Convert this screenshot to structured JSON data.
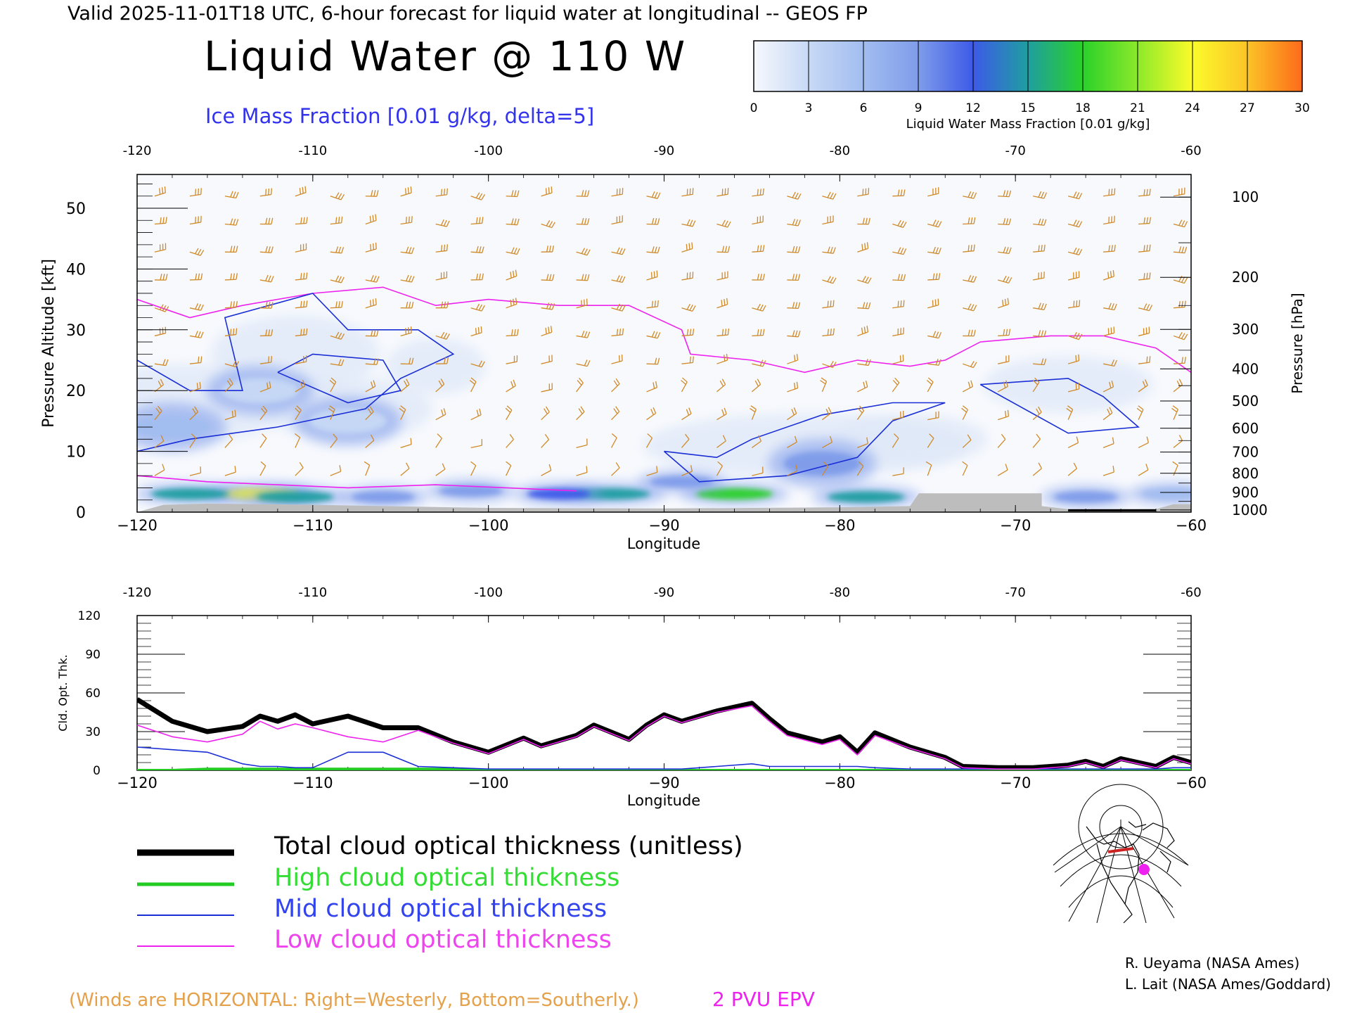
{
  "header": {
    "valid_line": "Valid 2025-11-01T18 UTC, 6-hour forecast for liquid water at longitudinal -- GEOS FP",
    "title": "Liquid Water @ 110 W",
    "subtitle": "Ice Mass Fraction [0.01 g/kg, delta=5]"
  },
  "colorbar": {
    "label": "Liquid Water Mass Fraction [0.01 g/kg]",
    "ticks": [
      "0",
      "3",
      "6",
      "9",
      "12",
      "15",
      "18",
      "21",
      "24",
      "27",
      "30"
    ],
    "colors": [
      "#f6f8fd",
      "#c7d9f5",
      "#a2bdf0",
      "#7f9cea",
      "#3d5ae8",
      "#1f9ea0",
      "#2ad12a",
      "#8ce92a",
      "#fbfb2a",
      "#fcc427",
      "#fd6a1a"
    ]
  },
  "colors": {
    "wind": "#d08a28",
    "epv": "#ee22ee",
    "ice": "#1a2ed6",
    "high": "#22cc22",
    "ground": "#bdbdbd",
    "axis": "#000000"
  },
  "top_panel": {
    "top_ticks": [
      "-120",
      "-110",
      "-100",
      "-90",
      "-80",
      "-70",
      "-60"
    ],
    "bottom_ticks": [
      "−120",
      "−110",
      "−100",
      "−90",
      "−80",
      "−70",
      "−60"
    ],
    "xlabel": "Longitude",
    "ylabel_left": "Pressure Altitude [kft]",
    "left_ticks": [
      "0",
      "10",
      "20",
      "30",
      "40",
      "50"
    ],
    "ylabel_right": "Pressure [hPa]",
    "right_ticks": [
      "100",
      "200",
      "300",
      "400",
      "500",
      "600",
      "700",
      "800",
      "900",
      "1000"
    ]
  },
  "bottom_panel": {
    "top_ticks": [
      "-120",
      "-110",
      "-100",
      "-90",
      "-80",
      "-70",
      "-60"
    ],
    "bottom_ticks": [
      "−120",
      "−110",
      "−100",
      "−90",
      "−80",
      "−70",
      "−60"
    ],
    "xlabel": "Longitude",
    "ylabel": "Cld. Opt. Thk.",
    "y_ticks": [
      "0",
      "30",
      "60",
      "90",
      "120"
    ]
  },
  "legend": {
    "total": "Total cloud optical thickness (unitless)",
    "high": "High cloud optical thickness",
    "mid": "Mid cloud optical thickness",
    "low": "Low cloud optical thickness"
  },
  "footer": {
    "winds_note": "(Winds are HORIZONTAL: Right=Westerly, Bottom=Southerly.)",
    "epv_label": "2 PVU EPV",
    "credit1": "R. Ueyama (NASA Ames)",
    "credit2": "L. Lait (NASA Ames/Goddard)"
  },
  "chart_data": [
    {
      "type": "heatmap",
      "title": "Liquid Water @ 110 W",
      "xlabel": "Longitude",
      "ylabel": "Pressure Altitude [kft]",
      "xlim": [
        -120,
        -60
      ],
      "ylim": [
        0,
        55
      ],
      "pressure_ticks_hpa": [
        100,
        200,
        300,
        400,
        500,
        600,
        700,
        800,
        900,
        1000
      ],
      "liquid_water_scale": [
        0,
        30
      ],
      "liquid_water_blobs": [
        {
          "lon": -113,
          "alt": 3.0,
          "value": 24
        },
        {
          "lon": -111,
          "alt": 2.5,
          "value": 14
        },
        {
          "lon": -117,
          "alt": 3.0,
          "value": 16
        },
        {
          "lon": -106,
          "alt": 2.5,
          "value": 10
        },
        {
          "lon": -101,
          "alt": 3.5,
          "value": 10
        },
        {
          "lon": -93,
          "alt": 3.0,
          "value": 14
        },
        {
          "lon": -96,
          "alt": 3.0,
          "value": 11
        },
        {
          "lon": -86,
          "alt": 3.0,
          "value": 18
        },
        {
          "lon": -89,
          "alt": 5.0,
          "value": 9
        },
        {
          "lon": -81,
          "alt": 8.0,
          "value": 8
        },
        {
          "lon": -78.5,
          "alt": 2.5,
          "value": 14
        },
        {
          "lon": -66,
          "alt": 2.5,
          "value": 8
        },
        {
          "lon": -61,
          "alt": 3.0,
          "value": 7
        },
        {
          "lon": -113,
          "alt": 20.0,
          "value": 3
        },
        {
          "lon": -108,
          "alt": 15.0,
          "value": 3
        },
        {
          "lon": -118,
          "alt": 14.0,
          "value": 5
        }
      ],
      "epv_2pvu_upper": [
        [
          -120,
          35
        ],
        [
          -117,
          32
        ],
        [
          -114,
          34
        ],
        [
          -110,
          36
        ],
        [
          -106,
          37
        ],
        [
          -103,
          34
        ],
        [
          -100,
          35
        ],
        [
          -96,
          34
        ],
        [
          -92,
          34
        ],
        [
          -89,
          30
        ],
        [
          -88.5,
          26
        ],
        [
          -85,
          25
        ],
        [
          -82,
          23
        ],
        [
          -79,
          25
        ],
        [
          -76,
          24
        ],
        [
          -74,
          25
        ],
        [
          -72,
          28
        ],
        [
          -68,
          29
        ],
        [
          -65,
          29
        ],
        [
          -62,
          27
        ],
        [
          -60,
          23
        ]
      ],
      "epv_2pvu_lower": [
        [
          -120,
          6
        ],
        [
          -116,
          5
        ],
        [
          -112,
          4.5
        ],
        [
          -108,
          4
        ],
        [
          -103,
          4.5
        ],
        [
          -99,
          4
        ],
        [
          -95,
          3.5
        ]
      ],
      "ice_contours": [
        [
          [
            -120,
            25
          ],
          [
            -117,
            20
          ],
          [
            -114,
            20
          ],
          [
            -115,
            32
          ],
          [
            -110,
            36
          ],
          [
            -108,
            30
          ],
          [
            -104,
            30
          ],
          [
            -102,
            26
          ],
          [
            -105,
            22
          ],
          [
            -107,
            17
          ],
          [
            -112,
            14
          ],
          [
            -117,
            12
          ],
          [
            -120,
            10
          ]
        ],
        [
          [
            -112,
            23
          ],
          [
            -110,
            26
          ],
          [
            -106,
            25
          ],
          [
            -105,
            20
          ],
          [
            -108,
            18
          ],
          [
            -112,
            23
          ]
        ],
        [
          [
            -90,
            10
          ],
          [
            -87,
            9
          ],
          [
            -85,
            12
          ],
          [
            -81,
            16
          ],
          [
            -77,
            18
          ],
          [
            -74,
            18
          ],
          [
            -77,
            15
          ],
          [
            -79,
            9
          ],
          [
            -83,
            6
          ],
          [
            -88,
            5
          ],
          [
            -90,
            10
          ]
        ],
        [
          [
            -72,
            21
          ],
          [
            -67,
            22
          ],
          [
            -65,
            19
          ],
          [
            -63,
            14
          ],
          [
            -67,
            13
          ],
          [
            -72,
            21
          ]
        ]
      ]
    },
    {
      "type": "line",
      "xlabel": "Longitude",
      "ylabel": "Cld. Opt. Thk.",
      "xlim": [
        -120,
        -60
      ],
      "ylim": [
        0,
        120
      ],
      "x": [
        -120,
        -118,
        -116,
        -114,
        -113,
        -112,
        -111,
        -110,
        -108,
        -106,
        -104,
        -102,
        -100,
        -98,
        -97,
        -95,
        -94,
        -92,
        -91,
        -90,
        -89,
        -87,
        -85,
        -84,
        -83,
        -81,
        -80,
        -79,
        -78,
        -76,
        -74,
        -73,
        -71,
        -69,
        -67,
        -66,
        -65,
        -64,
        -62,
        -61,
        -60
      ],
      "series": [
        {
          "name": "Total cloud optical thickness (unitless)",
          "values": [
            55,
            38,
            30,
            34,
            42,
            38,
            43,
            36,
            42,
            33,
            33,
            22,
            14,
            25,
            19,
            27,
            35,
            24,
            35,
            43,
            38,
            46,
            52,
            40,
            29,
            22,
            26,
            14,
            29,
            18,
            10,
            3,
            2,
            2,
            4,
            7,
            3,
            9,
            3,
            10,
            6
          ]
        },
        {
          "name": "High cloud optical thickness",
          "values": [
            0,
            0,
            1,
            1,
            1,
            1,
            1,
            1,
            1,
            1,
            1,
            1,
            0,
            0,
            0,
            0,
            0,
            0,
            0,
            0,
            0,
            0,
            0,
            0,
            0,
            0,
            0,
            0,
            0,
            0,
            0,
            0,
            0,
            0,
            0,
            0,
            0,
            0,
            0,
            0,
            0
          ]
        },
        {
          "name": "Mid cloud optical thickness",
          "values": [
            18,
            16,
            14,
            5,
            3,
            3,
            2,
            2,
            14,
            14,
            3,
            2,
            1,
            1,
            1,
            1,
            1,
            1,
            1,
            1,
            1,
            3,
            5,
            3,
            3,
            3,
            3,
            3,
            2,
            1,
            1,
            1,
            1,
            1,
            1,
            1,
            1,
            1,
            1,
            2,
            2
          ]
        },
        {
          "name": "Low cloud optical thickness",
          "values": [
            35,
            26,
            22,
            28,
            38,
            32,
            36,
            33,
            26,
            22,
            31,
            21,
            13,
            24,
            18,
            26,
            34,
            23,
            34,
            42,
            37,
            45,
            50,
            38,
            27,
            20,
            24,
            12,
            27,
            17,
            9,
            2,
            1,
            1,
            3,
            6,
            2,
            8,
            2,
            9,
            5
          ]
        }
      ]
    }
  ]
}
